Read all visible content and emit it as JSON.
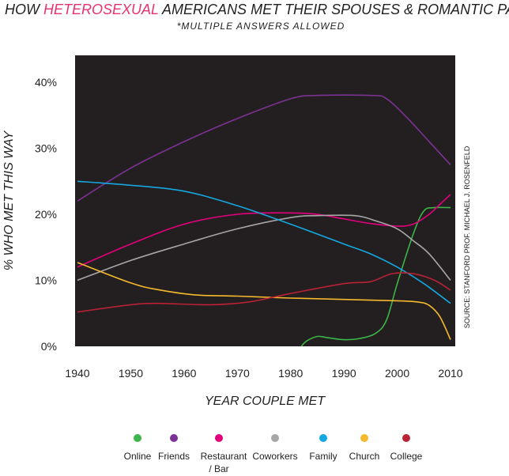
{
  "header": {
    "title_prefix": "HOW ",
    "title_highlight": "HETEROSEXUAL",
    "title_suffix": " AMERICANS MET THEIR SPOUSES & ROMANTIC PARTNERS",
    "subtitle": "*MULTIPLE ANSWERS ALLOWED",
    "highlight_color": "#e8336e"
  },
  "source_note": "SOURCE:  STANFORD PROF. MICHAEL J. ROSENFELD",
  "chart_data": {
    "type": "line",
    "xlabel": "YEAR COUPLE MET",
    "ylabel": "% WHO MET THIS WAY",
    "xlim": [
      1940,
      2010
    ],
    "ylim": [
      0,
      44
    ],
    "xticks": [
      1940,
      1950,
      1960,
      1970,
      1980,
      1990,
      2000,
      2010
    ],
    "yticks": [
      0,
      10,
      20,
      30,
      40
    ],
    "ytick_labels": [
      "0%",
      "10%",
      "20%",
      "30%",
      "40%"
    ],
    "background": "#231f20",
    "grid": false,
    "legend_position": "bottom",
    "series": [
      {
        "name": "Online",
        "color": "#3cb54a",
        "points": [
          [
            1982,
            0
          ],
          [
            1983,
            0.8
          ],
          [
            1985,
            1.5
          ],
          [
            1987,
            1.3
          ],
          [
            1990,
            1.0
          ],
          [
            1993,
            1.2
          ],
          [
            1996,
            2.0
          ],
          [
            1998,
            4.0
          ],
          [
            2000,
            9.5
          ],
          [
            2003,
            17.0
          ],
          [
            2005,
            20.5
          ],
          [
            2007,
            21.0
          ],
          [
            2010,
            21.0
          ]
        ]
      },
      {
        "name": "Friends",
        "color": "#7b3294",
        "points": [
          [
            1940,
            22
          ],
          [
            1950,
            27
          ],
          [
            1960,
            31
          ],
          [
            1970,
            34.5
          ],
          [
            1980,
            37.5
          ],
          [
            1985,
            38
          ],
          [
            1995,
            38
          ],
          [
            1998,
            37.5
          ],
          [
            2002,
            34.5
          ],
          [
            2006,
            31
          ],
          [
            2010,
            27.5
          ]
        ]
      },
      {
        "name": "Restaurant / Bar",
        "color": "#e4007c",
        "points": [
          [
            1940,
            12
          ],
          [
            1950,
            15.5
          ],
          [
            1960,
            18.5
          ],
          [
            1970,
            20
          ],
          [
            1980,
            20.2
          ],
          [
            1985,
            20
          ],
          [
            1990,
            19.3
          ],
          [
            1995,
            18.6
          ],
          [
            2000,
            18.2
          ],
          [
            2003,
            18.5
          ],
          [
            2006,
            20
          ],
          [
            2008,
            21.5
          ],
          [
            2010,
            23
          ]
        ]
      },
      {
        "name": "Coworkers",
        "color": "#a6a6a6",
        "points": [
          [
            1940,
            10
          ],
          [
            1950,
            13
          ],
          [
            1960,
            15.5
          ],
          [
            1970,
            17.8
          ],
          [
            1980,
            19.5
          ],
          [
            1985,
            19.8
          ],
          [
            1992,
            19.8
          ],
          [
            1996,
            19
          ],
          [
            2000,
            17.8
          ],
          [
            2003,
            16
          ],
          [
            2006,
            14
          ],
          [
            2010,
            10
          ]
        ]
      },
      {
        "name": "Family",
        "color": "#15a7e0",
        "points": [
          [
            1940,
            25
          ],
          [
            1950,
            24.4
          ],
          [
            1960,
            23.5
          ],
          [
            1970,
            21.3
          ],
          [
            1980,
            18.5
          ],
          [
            1990,
            15.5
          ],
          [
            1995,
            14
          ],
          [
            2000,
            12
          ],
          [
            2005,
            9.5
          ],
          [
            2010,
            6.5
          ]
        ]
      },
      {
        "name": "Church",
        "color": "#f5b92e",
        "points": [
          [
            1940,
            12.7
          ],
          [
            1950,
            9.6
          ],
          [
            1955,
            8.6
          ],
          [
            1962,
            7.8
          ],
          [
            1970,
            7.6
          ],
          [
            1980,
            7.3
          ],
          [
            1990,
            7.1
          ],
          [
            2000,
            6.9
          ],
          [
            2004,
            6.7
          ],
          [
            2006,
            6.2
          ],
          [
            2008,
            4.5
          ],
          [
            2010,
            1
          ]
        ]
      },
      {
        "name": "College",
        "color": "#b82234",
        "points": [
          [
            1940,
            5.2
          ],
          [
            1950,
            6.3
          ],
          [
            1955,
            6.5
          ],
          [
            1965,
            6.3
          ],
          [
            1972,
            6.7
          ],
          [
            1980,
            8
          ],
          [
            1990,
            9.5
          ],
          [
            1995,
            9.8
          ],
          [
            1999,
            11
          ],
          [
            2003,
            11
          ],
          [
            2007,
            10
          ],
          [
            2010,
            8.5
          ]
        ]
      }
    ]
  }
}
